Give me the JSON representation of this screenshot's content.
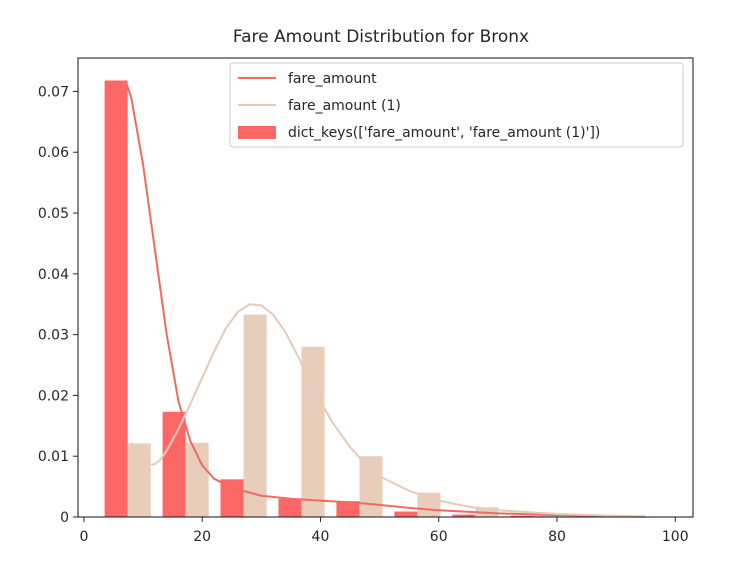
{
  "colors": {
    "series_a": "#ff6666",
    "series_a_line": "#f06a62",
    "series_b": "#e8cdbb",
    "series_b_line": "#e4cbbb",
    "axis": "#262626"
  },
  "chart_data": {
    "type": "bar",
    "title": "Fare Amount Distribution for Bronx",
    "xlabel": "",
    "ylabel": "",
    "xlim": [
      -1,
      103
    ],
    "ylim": [
      0,
      0.0755
    ],
    "xticks": [
      0,
      20,
      40,
      60,
      80,
      100
    ],
    "yticks": [
      0,
      0.01,
      0.02,
      0.03,
      0.04,
      0.05,
      0.06,
      0.07
    ],
    "xtick_labels": [
      "0",
      "20",
      "40",
      "60",
      "80",
      "100"
    ],
    "ytick_labels": [
      "0",
      "0.01",
      "0.02",
      "0.03",
      "0.04",
      "0.05",
      "0.06",
      "0.07"
    ],
    "grid": false,
    "legend_position": "top-right",
    "legend": [
      {
        "label": "fare_amount",
        "kind": "line",
        "color": "#f06a62"
      },
      {
        "label": "fare_amount (1)",
        "kind": "line",
        "color": "#e4cbbb"
      },
      {
        "label": "dict_keys(['fare_amount', 'fare_amount (1)'])",
        "kind": "patch",
        "color": "#ff6666"
      }
    ],
    "bins": {
      "start": 3.5,
      "width": 9.8,
      "count": 10,
      "bar_width": 3.9
    },
    "series": [
      {
        "name": "fare_amount",
        "kind": "histogram",
        "offset": 0,
        "color": "#ff6666",
        "values": [
          0.0718,
          0.0173,
          0.0062,
          0.003,
          0.0026,
          0.0009,
          0.0004,
          0.0002,
          0.0001,
          5e-05
        ]
      },
      {
        "name": "fare_amount (1)",
        "kind": "histogram",
        "offset": 1,
        "color": "#e8cdbb",
        "values": [
          0.0121,
          0.0122,
          0.0333,
          0.028,
          0.01,
          0.004,
          0.0016,
          0.0006,
          0.0002,
          0.0001
        ]
      },
      {
        "name": "fare_amount",
        "kind": "kde",
        "color": "#f06a62",
        "x": [
          7,
          8,
          10,
          12,
          14,
          16,
          18,
          20,
          22,
          25,
          30,
          35,
          40,
          45,
          50,
          55,
          60,
          70,
          80,
          90,
          95
        ],
        "y": [
          0.0718,
          0.069,
          0.058,
          0.044,
          0.03,
          0.019,
          0.0125,
          0.0085,
          0.0063,
          0.0048,
          0.0035,
          0.003,
          0.0027,
          0.0024,
          0.002,
          0.0015,
          0.0011,
          0.0006,
          0.0003,
          0.0001,
          5e-05
        ]
      },
      {
        "name": "fare_amount (1)",
        "kind": "kde",
        "color": "#e4cbbb",
        "x": [
          8,
          9,
          10,
          11,
          12,
          13,
          14,
          16,
          18,
          20,
          22,
          24,
          26,
          28,
          30,
          32,
          34,
          36,
          38,
          40,
          42,
          45,
          48,
          50,
          55,
          60,
          65,
          70,
          80,
          90,
          95
        ],
        "y": [
          0.0122,
          0.0105,
          0.0092,
          0.0086,
          0.0087,
          0.0095,
          0.0109,
          0.0145,
          0.0186,
          0.0229,
          0.0272,
          0.031,
          0.0337,
          0.035,
          0.0348,
          0.0333,
          0.0305,
          0.0268,
          0.0228,
          0.019,
          0.0156,
          0.0115,
          0.0083,
          0.0067,
          0.0043,
          0.0027,
          0.0017,
          0.0011,
          0.0005,
          0.0002,
          0.0001
        ]
      }
    ]
  }
}
